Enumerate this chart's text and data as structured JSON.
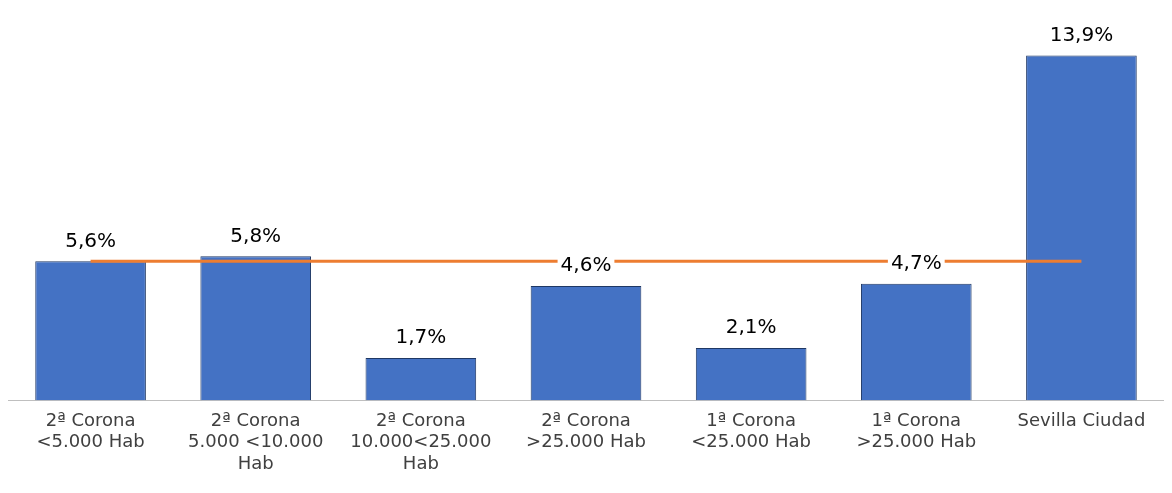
{
  "chart_data": {
    "type": "bar",
    "categories": [
      "2ª Corona <5.000 Hab",
      "2ª Corona 5.000 <10.000 Hab",
      "2ª Corona 10.000<25.000 Hab",
      "2ª Corona >25.000 Hab",
      "1ª Corona <25.000 Hab",
      "1ª Corona >25.000 Hab",
      "Sevilla Ciudad"
    ],
    "values": [
      5.6,
      5.8,
      1.7,
      4.6,
      2.1,
      4.7,
      13.9
    ],
    "value_labels": [
      "5,6%",
      "5,8%",
      "1,7%",
      "4,6%",
      "2,1%",
      "4,7%",
      "13,9%"
    ],
    "color": "#4472c4",
    "grid": false,
    "legend": false,
    "ref_lines": [
      {
        "axis": "y",
        "value": 5.6,
        "color": "#ed7d31"
      }
    ]
  }
}
